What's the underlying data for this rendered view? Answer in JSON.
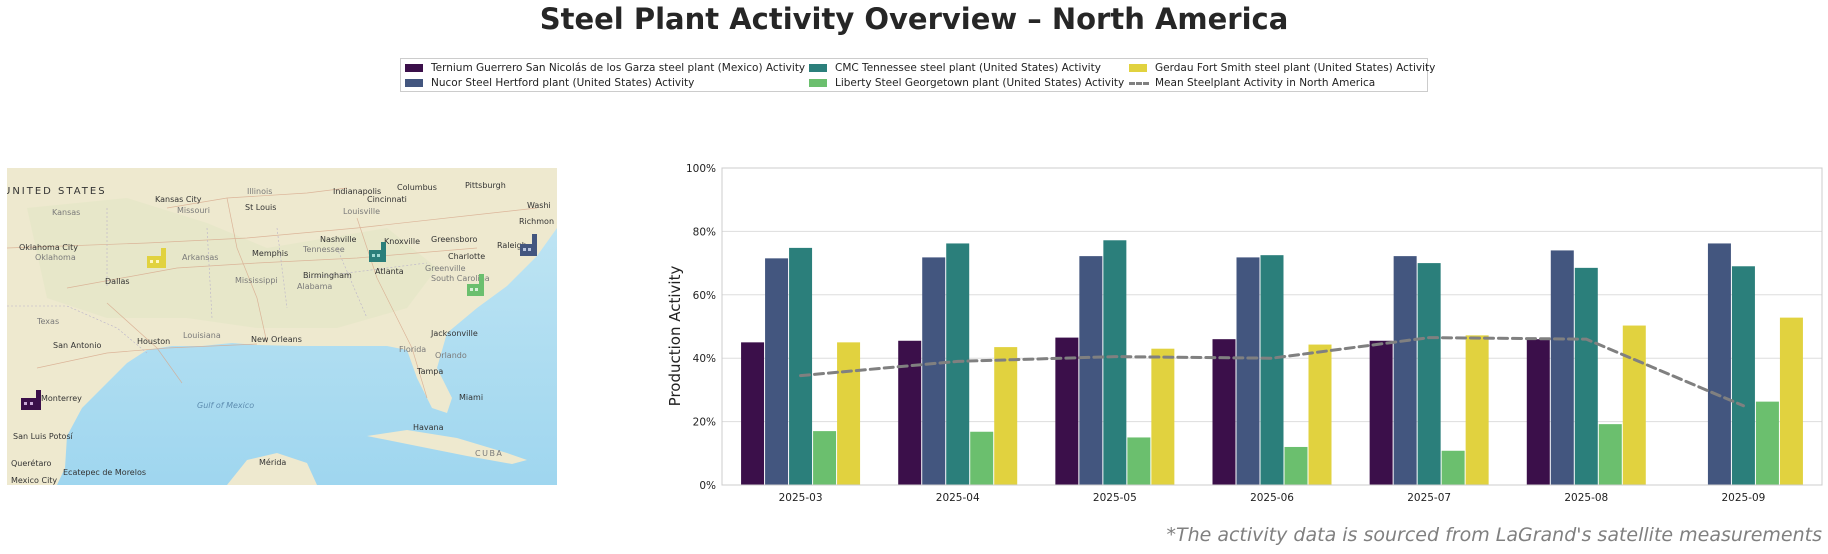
{
  "title": "Steel Plant Activity Overview – North America",
  "footnote": "*The activity data is sourced from LaGrand's satellite measurements",
  "legend": {
    "items": [
      {
        "label": "Ternium Guerrero San Nicolás de los Garza steel plant (Mexico) Activity",
        "color": "#3b0f4a"
      },
      {
        "label": "Nucor Steel Hertford plant (United States) Activity",
        "color": "#43567f"
      },
      {
        "label": "CMC Tennessee steel plant (United States) Activity",
        "color": "#2b7f7b"
      },
      {
        "label": "Liberty Steel Georgetown plant (United States) Activity",
        "color": "#6bbf6e"
      },
      {
        "label": "Gerdau Fort Smith steel plant (United States) Activity",
        "color": "#e1d23f"
      },
      {
        "label": "Mean Steelplant Activity in North America",
        "color": "#808080"
      }
    ]
  },
  "map": {
    "labels": {
      "united_states": "UNITED STATES",
      "kansas_city": "Kansas City",
      "st_louis": "St Louis",
      "indianapolis": "Indianapolis",
      "columbus": "Columbus",
      "pittsburgh": "Pittsburgh",
      "cincinnati": "Cincinnati",
      "washington": "Washi",
      "richmond": "Richmon",
      "louisville": "Louisville",
      "kansas": "Kansas",
      "missouri": "Missouri",
      "illinois": "Illinois",
      "oklahoma_city": "Oklahoma City",
      "oklahoma": "Oklahoma",
      "arkansas": "Arkansas",
      "memphis": "Memphis",
      "nashville": "Nashville",
      "knoxville": "Knoxville",
      "greensboro": "Greensboro",
      "raleigh": "Raleigh",
      "charlotte": "Charlotte",
      "tennessee": "Tennessee",
      "dallas": "Dallas",
      "birmingham": "Birmingham",
      "atlanta": "Atlanta",
      "greenville": "Greenville",
      "south_carolina": "South Carolina",
      "mississippi": "Mississippi",
      "alabama": "Alabama",
      "texas": "Texas",
      "louisiana": "Louisiana",
      "san_antonio": "San Antonio",
      "houston": "Houston",
      "new_orleans": "New Orleans",
      "jacksonville": "Jacksonville",
      "florida": "Florida",
      "orlando": "Orlando",
      "tampa": "Tampa",
      "monterrey": "Monterrey",
      "san_luis_potosi": "San Luis Potosí",
      "gulf_of_mexico": "Gulf of Mexico",
      "miami": "Miami",
      "havana": "Havana",
      "cuba": "CUBA",
      "queretaro": "Querétaro",
      "ecatepec": "Ecatepec de Morelos",
      "merida": "Mérida",
      "mexico_city": "Mexico City"
    },
    "plant_icons": [
      {
        "name": "ternium-plant",
        "color": "#3b0f4a"
      },
      {
        "name": "nucor-plant",
        "color": "#43567f"
      },
      {
        "name": "cmc-plant",
        "color": "#2b7f7b"
      },
      {
        "name": "liberty-plant",
        "color": "#6bbf6e"
      },
      {
        "name": "gerdau-plant",
        "color": "#e1d23f"
      }
    ]
  },
  "chart_data": {
    "type": "bar",
    "ylabel": "Production Activity",
    "xlabel": "",
    "ylim": [
      0,
      100
    ],
    "y_ticks": [
      "0%",
      "20%",
      "40%",
      "60%",
      "80%",
      "100%"
    ],
    "grid": true,
    "categories": [
      "2025-03",
      "2025-04",
      "2025-05",
      "2025-06",
      "2025-07",
      "2025-08",
      "2025-09"
    ],
    "series": [
      {
        "name": "Ternium Guerrero San Nicolás de los Garza steel plant (Mexico) Activity",
        "color": "#3b0f4a",
        "values": [
          45,
          45.5,
          46.5,
          46,
          45.5,
          46,
          null
        ]
      },
      {
        "name": "Nucor Steel Hertford plant (United States) Activity",
        "color": "#43567f",
        "values": [
          71.5,
          71.8,
          72.2,
          71.8,
          72.2,
          74,
          76.2
        ]
      },
      {
        "name": "CMC Tennessee steel plant (United States) Activity",
        "color": "#2b7f7b",
        "values": [
          74.8,
          76.2,
          77.2,
          72.5,
          70,
          68.5,
          69
        ]
      },
      {
        "name": "Liberty Steel Georgetown plant (United States) Activity",
        "color": "#6bbf6e",
        "values": [
          17,
          16.8,
          15,
          12,
          10.8,
          19.2,
          26.3
        ]
      },
      {
        "name": "Gerdau Fort Smith steel plant (United States) Activity",
        "color": "#e1d23f",
        "values": [
          45,
          43.5,
          43,
          44.3,
          47.2,
          50.3,
          52.8
        ]
      }
    ],
    "mean_line": {
      "name": "Mean Steelplant Activity in North America",
      "color": "#808080",
      "values": [
        34.5,
        39,
        40.5,
        40,
        46.5,
        46,
        25
      ]
    }
  }
}
